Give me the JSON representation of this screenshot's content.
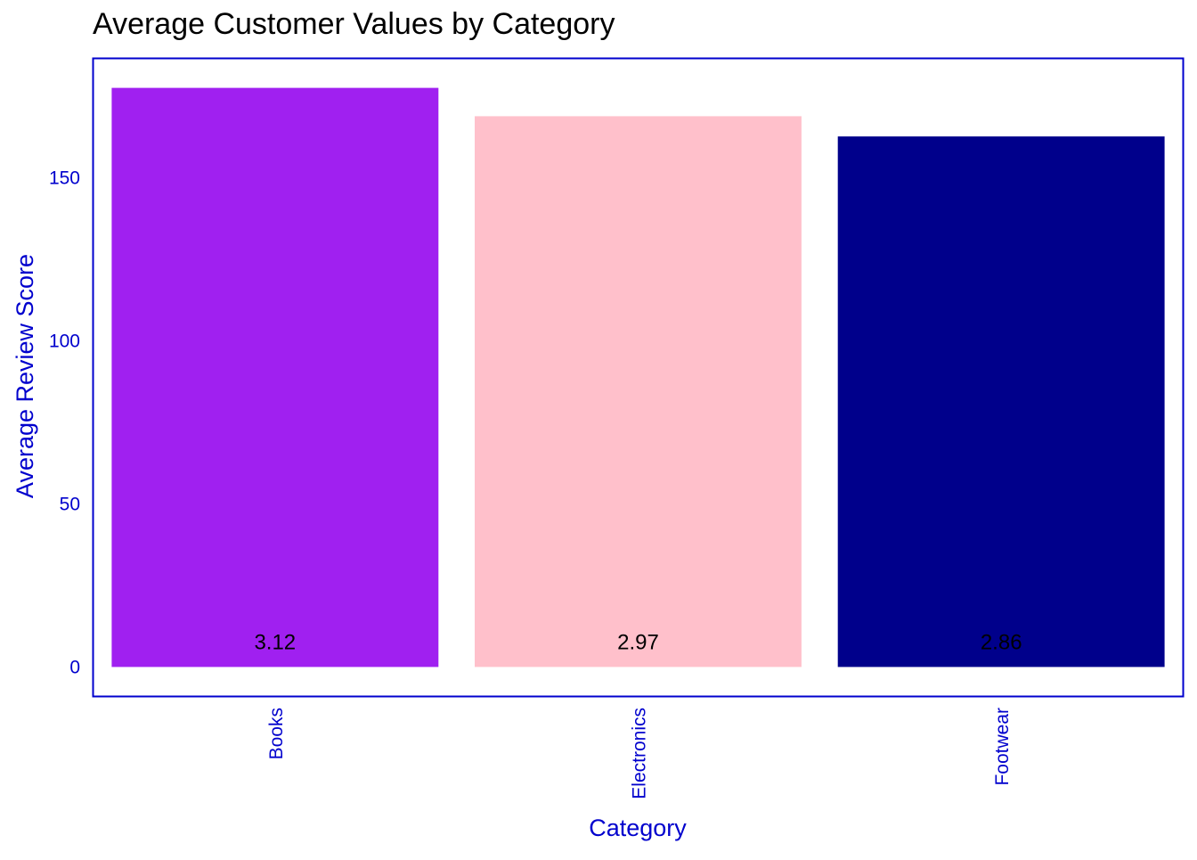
{
  "chart_data": {
    "type": "bar",
    "title": "Average Customer Values by Category",
    "xlabel": "Category",
    "ylabel": "Average Review Score",
    "categories": [
      "Books",
      "Electronics",
      "Footwear"
    ],
    "values": [
      177.5,
      168.8,
      162.6
    ],
    "bar_labels": [
      "3.12",
      "2.97",
      "2.86"
    ],
    "bar_colors": [
      "#A020F0",
      "#FFC0CB",
      "#00008B"
    ],
    "yticks": [
      0,
      50,
      100,
      150
    ],
    "ytick_labels": [
      "0",
      "50",
      "100",
      "150"
    ],
    "ylim": [
      -8.9,
      186.4
    ],
    "grid": false,
    "legend": "none",
    "axis_color": "#0000CD"
  }
}
